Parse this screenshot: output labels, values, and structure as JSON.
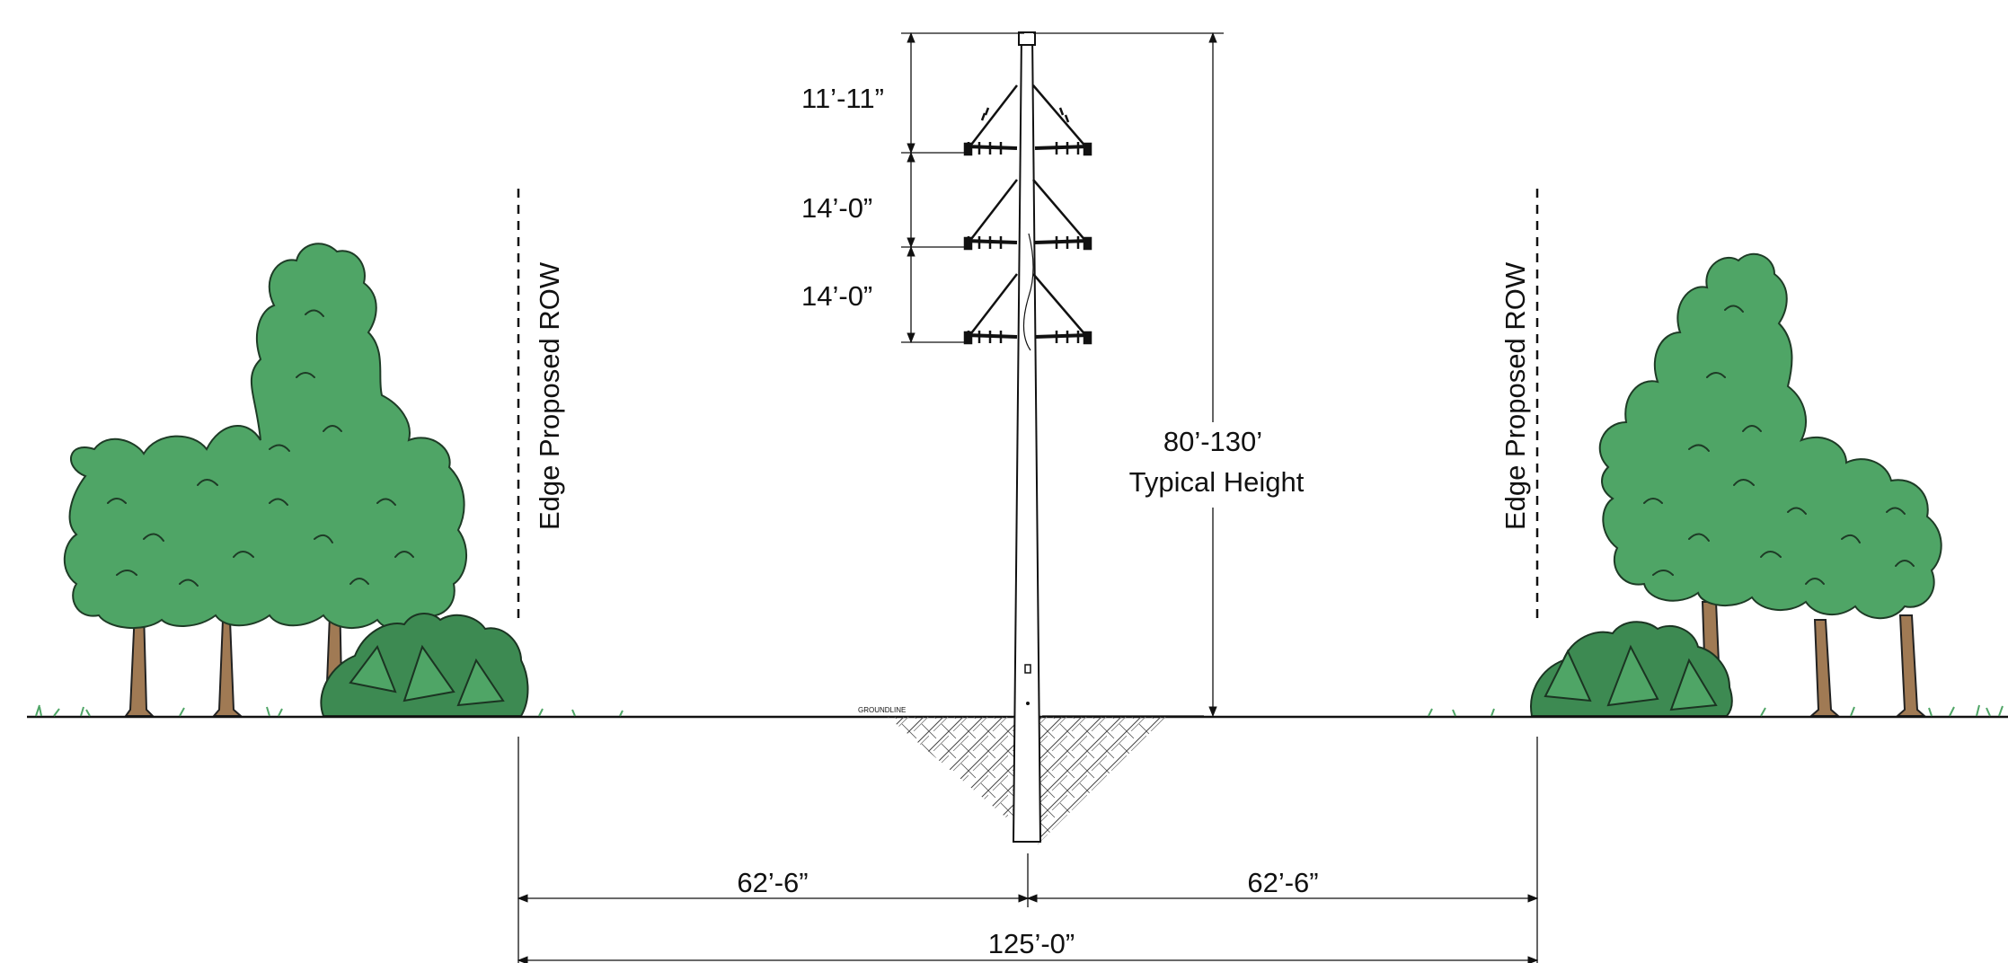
{
  "diagram": {
    "labels": {
      "left_row_edge": "Edge Proposed ROW",
      "right_row_edge": "Edge Proposed ROW",
      "groundline": "GROUNDLINE",
      "spacing_top": "11’-11”",
      "spacing_middle": "14’-0”",
      "spacing_bottom": "14’-0”",
      "height_value": "80’-130’",
      "height_caption": "Typical Height",
      "left_half_width": "62’-6”",
      "right_half_width": "62’-6”",
      "total_width": "125’-0”"
    },
    "colors": {
      "tree_foliage": "#4fa566",
      "tree_foliage_dark": "#3d8a52",
      "trunk": "#a07a54",
      "grass": "#4fa566",
      "line": "#111111"
    }
  }
}
